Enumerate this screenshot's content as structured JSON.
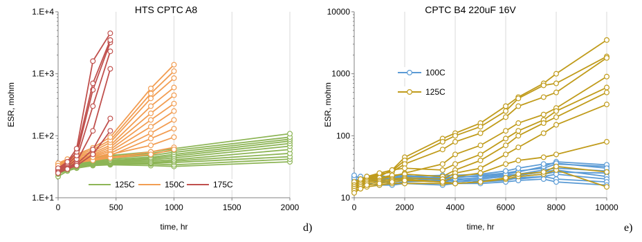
{
  "panel_labels": [
    "d)",
    "e)"
  ],
  "chart_data": [
    {
      "type": "line",
      "title": "HTS CPTC A8",
      "xlabel": "time, hr",
      "ylabel": "ESR, mohm",
      "xlim": [
        0,
        2000
      ],
      "ylim": [
        10,
        10000
      ],
      "yscale": "log",
      "xticks": [
        0,
        500,
        1000,
        1500,
        2000
      ],
      "yticks": [
        10,
        100,
        1000,
        10000
      ],
      "ytick_labels": [
        "1.E+1",
        "1.E+2",
        "1.E+3",
        "1.E+4"
      ],
      "grid": "vertical",
      "legend_position": "bottom",
      "legend": [
        "125C",
        "150C",
        "175C"
      ],
      "colors": {
        "125C": "#8db556",
        "150C": "#f29d52",
        "175C": "#c0504d"
      },
      "series": [
        {
          "name": "125C",
          "x": [
            0,
            80,
            160,
            300,
            450,
            800,
            1000,
            2000
          ],
          "lines": [
            [
              22,
              27,
              30,
              33,
              34,
              33,
              32,
              38
            ],
            [
              24,
              28,
              31,
              34,
              35,
              35,
              34,
              42
            ],
            [
              25,
              29,
              32,
              34,
              36,
              36,
              37,
              46
            ],
            [
              26,
              30,
              33,
              35,
              37,
              37,
              39,
              52
            ],
            [
              27,
              31,
              33,
              36,
              38,
              39,
              41,
              60
            ],
            [
              28,
              31,
              34,
              37,
              39,
              41,
              44,
              68
            ],
            [
              28,
              32,
              35,
              38,
              40,
              43,
              47,
              75
            ],
            [
              29,
              33,
              36,
              39,
              42,
              45,
              50,
              82
            ],
            [
              30,
              34,
              37,
              40,
              44,
              48,
              54,
              88
            ],
            [
              31,
              35,
              38,
              42,
              46,
              52,
              58,
              95
            ],
            [
              32,
              36,
              40,
              44,
              48,
              55,
              62,
              108
            ]
          ]
        },
        {
          "name": "150C",
          "x": [
            0,
            80,
            160,
            300,
            450,
            800,
            1000
          ],
          "lines": [
            [
              30,
              34,
              38,
              42,
              48,
              90,
              130
            ],
            [
              30,
              34,
              39,
              44,
              52,
              110,
              180
            ],
            [
              31,
              35,
              40,
              46,
              56,
              140,
              250
            ],
            [
              32,
              36,
              41,
              48,
              60,
              180,
              330
            ],
            [
              32,
              37,
              42,
              50,
              65,
              230,
              450
            ],
            [
              33,
              38,
              44,
              53,
              70,
              300,
              600
            ],
            [
              34,
              39,
              46,
              56,
              78,
              400,
              850
            ],
            [
              35,
              40,
              48,
              60,
              85,
              480,
              1100
            ],
            [
              36,
              42,
              50,
              64,
              95,
              580,
              1400
            ],
            [
              31,
              35,
              38,
              42,
              45,
              55,
              65
            ],
            [
              30,
              34,
              37,
              40,
              44,
              50,
              60
            ],
            [
              33,
              36,
              40,
              45,
              50,
              70,
              95
            ]
          ]
        },
        {
          "name": "175C",
          "x": [
            0,
            80,
            160,
            300,
            450
          ],
          "lines": [
            [
              25,
              30,
              38,
              120,
              1200
            ],
            [
              27,
              32,
              42,
              300,
              2300
            ],
            [
              28,
              34,
              48,
              550,
              3200
            ],
            [
              29,
              36,
              55,
              700,
              3500
            ],
            [
              30,
              38,
              62,
              1600,
              4500
            ],
            [
              26,
              30,
              35,
              60,
              190
            ],
            [
              25,
              29,
              33,
              50,
              120
            ]
          ]
        }
      ]
    },
    {
      "type": "line",
      "title": "CPTC B4 220uF 16V",
      "xlabel": "time, hr",
      "ylabel": "ESR, mohm",
      "xlim": [
        0,
        10000
      ],
      "ylim": [
        10,
        10000
      ],
      "yscale": "log",
      "xticks": [
        0,
        2000,
        4000,
        6000,
        8000,
        10000
      ],
      "yticks": [
        10,
        100,
        1000,
        10000
      ],
      "ytick_labels": [
        "10",
        "100",
        "1000",
        "10000"
      ],
      "grid": "vertical",
      "legend_position": "upper-left",
      "legend": [
        "100C",
        "125C"
      ],
      "colors": {
        "100C": "#5b9bd5",
        "125C": "#c09b1a"
      },
      "series": [
        {
          "name": "100C",
          "x": [
            0,
            250,
            500,
            1000,
            1500,
            2000,
            3500,
            4000,
            5000,
            6000,
            6500,
            7500,
            8000,
            10000
          ],
          "lines": [
            [
              18,
              17,
              20,
              19,
              18,
              19,
              20,
              18,
              19,
              20,
              22,
              24,
              26,
              25
            ],
            [
              20,
              19,
              21,
              20,
              20,
              21,
              19,
              20,
              21,
              23,
              24,
              28,
              30,
              27
            ],
            [
              22,
              21,
              19,
              22,
              21,
              20,
              22,
              21,
              23,
              25,
              27,
              30,
              35,
              32
            ],
            [
              19,
              20,
              22,
              18,
              19,
              22,
              21,
              19,
              20,
              22,
              23,
              26,
              28,
              22
            ],
            [
              17,
              18,
              20,
              21,
              20,
              19,
              18,
              20,
              18,
              21,
              20,
              22,
              24,
              20
            ],
            [
              21,
              22,
              18,
              20,
              22,
              23,
              20,
              22,
              22,
              24,
              26,
              32,
              38,
              34
            ],
            [
              16,
              17,
              19,
              18,
              17,
              18,
              19,
              17,
              18,
              19,
              21,
              22,
              20,
              18
            ],
            [
              23,
              20,
              21,
              23,
              21,
              22,
              23,
              23,
              24,
              27,
              30,
              35,
              36,
              30
            ],
            [
              15,
              16,
              17,
              16,
              16,
              17,
              16,
              17,
              17,
              18,
              19,
              20,
              18,
              16
            ]
          ]
        },
        {
          "name": "125C",
          "x": [
            0,
            250,
            500,
            1000,
            1500,
            2000,
            3500,
            4000,
            5000,
            6000,
            6500,
            7500,
            8000,
            10000
          ],
          "lines": [
            [
              15,
              17,
              19,
              22,
              28,
              45,
              90,
              110,
              160,
              300,
              420,
              700,
              1000,
              3500
            ],
            [
              16,
              18,
              20,
              23,
              27,
              40,
              80,
              100,
              140,
              250,
              400,
              650,
              700,
              1900
            ],
            [
              17,
              19,
              21,
              24,
              26,
              35,
              60,
              80,
              110,
              200,
              300,
              420,
              500,
              1800
            ],
            [
              14,
              16,
              18,
              20,
              22,
              25,
              35,
              50,
              70,
              120,
              160,
              220,
              280,
              900
            ],
            [
              18,
              20,
              22,
              25,
              28,
              30,
              28,
              35,
              50,
              90,
              120,
              180,
              250,
              600
            ],
            [
              16,
              17,
              19,
              21,
              23,
              24,
              22,
              28,
              40,
              70,
              100,
              160,
              200,
              500
            ],
            [
              15,
              16,
              18,
              19,
              20,
              21,
              20,
              25,
              30,
              50,
              65,
              110,
              150,
              320
            ],
            [
              14,
              15,
              17,
              18,
              19,
              20,
              18,
              22,
              25,
              35,
              40,
              45,
              50,
              80
            ],
            [
              13,
              14,
              15,
              16,
              17,
              17,
              17,
              17,
              18,
              20,
              22,
              24,
              28,
              15
            ],
            [
              12,
              14,
              16,
              17,
              18,
              19,
              18,
              17,
              18,
              21,
              24,
              26,
              32,
              26
            ]
          ]
        }
      ]
    }
  ]
}
